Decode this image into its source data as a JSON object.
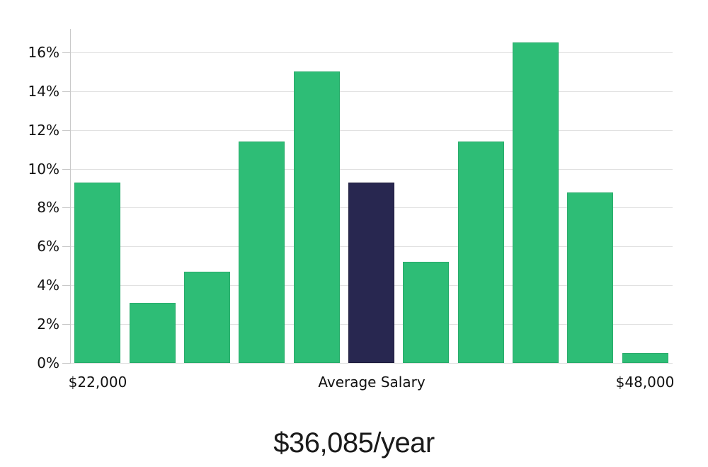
{
  "chart_data": {
    "type": "bar",
    "title": "$36,085/year",
    "xlabel": "",
    "ylabel": "",
    "values": [
      9.3,
      3.1,
      4.7,
      11.4,
      15.0,
      9.3,
      5.2,
      11.4,
      16.5,
      8.8,
      0.5
    ],
    "highlight_index": 5,
    "highlight_meaning": "Average Salary bar",
    "y_tick_values": [
      0,
      2,
      4,
      6,
      8,
      10,
      12,
      14,
      16
    ],
    "y_tick_labels": [
      "0%",
      "2%",
      "4%",
      "6%",
      "8%",
      "10%",
      "12%",
      "14%",
      "16%"
    ],
    "ylim": [
      0,
      17.2
    ],
    "x_ticks": [
      {
        "label": "$22,000",
        "bar": 0
      },
      {
        "label": "Average Salary",
        "bar": 5
      },
      {
        "label": "$48,000",
        "bar": 10
      }
    ],
    "grid": "horizontal",
    "legend": "none"
  },
  "colors": {
    "bar": "#2ebd76",
    "bar_border": "#28ab6a",
    "bar_highlight": "#282750",
    "bar_highlight_border": "#1e1c3c",
    "gridline": "#e1e1e1",
    "axis": "#c9c9c9",
    "text": "#111111",
    "background": "#ffffff"
  }
}
